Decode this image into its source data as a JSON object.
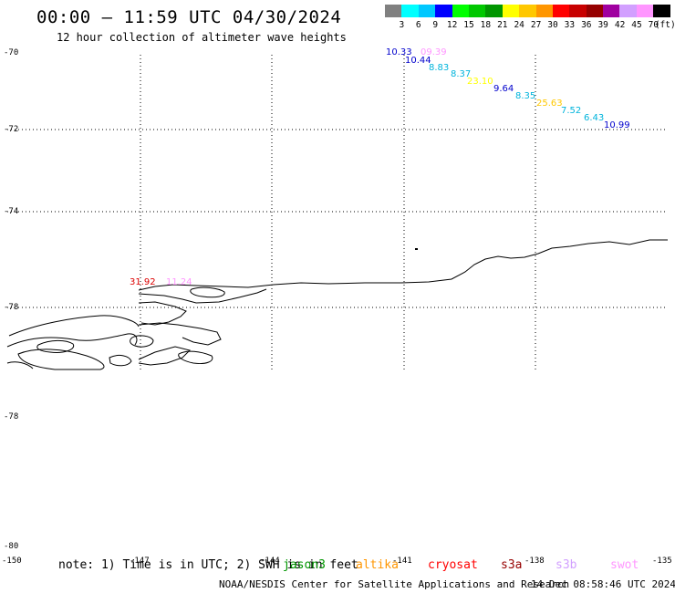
{
  "header": {
    "title": "00:00 – 11:59 UTC 04/30/2024",
    "subtitle": "12 hour collection of altimeter wave heights"
  },
  "colorbar": {
    "colors": [
      "#808080",
      "#00ffff",
      "#00c8ff",
      "#0000ff",
      "#00ff00",
      "#00c800",
      "#009600",
      "#ffff00",
      "#ffc800",
      "#ff9600",
      "#ff0000",
      "#c80000",
      "#960000",
      "#a000a0",
      "#d2a0ff",
      "#ff96ff",
      "#000000"
    ],
    "labels": [
      "3",
      "6",
      "9",
      "12",
      "15",
      "18",
      "21",
      "24",
      "27",
      "30",
      "33",
      "36",
      "39",
      "42",
      "45",
      "70"
    ],
    "unit": "(ft)"
  },
  "axes": {
    "y_labels": [
      "-70",
      "-72",
      "-74",
      "-76",
      "-78",
      "-80"
    ],
    "x_labels": [
      "-150",
      "-147",
      "-144",
      "-141",
      "-138",
      "-135"
    ]
  },
  "wave_heights": [
    {
      "text": "10.33",
      "color": "#0000cc"
    },
    {
      "text": "09.39",
      "color": "#ff96ff"
    },
    {
      "text": "10.44",
      "color": "#0000cc"
    },
    {
      "text": "8.83",
      "color": "#00b4dc"
    },
    {
      "text": "8.37",
      "color": "#00b4dc"
    },
    {
      "text": "23.10",
      "color": "#ffff00"
    },
    {
      "text": "9.64",
      "color": "#0000cc"
    },
    {
      "text": "8.35",
      "color": "#00b4dc"
    },
    {
      "text": "25.63",
      "color": "#ffc800"
    },
    {
      "text": "7.52",
      "color": "#00b4dc"
    },
    {
      "text": "6.43",
      "color": "#00b4dc"
    },
    {
      "text": "10.99",
      "color": "#0000cc"
    },
    {
      "text": "31.92",
      "color": "#dc0000"
    },
    {
      "text": "11.24",
      "color": "#ff96ff"
    }
  ],
  "footer": {
    "note": "note: 1) Time is in UTC; 2) SWH is in feet",
    "legend": [
      {
        "name": "jason3",
        "color": "#009600"
      },
      {
        "name": "altika",
        "color": "#ff9600"
      },
      {
        "name": "cryosat",
        "color": "#ff0000"
      },
      {
        "name": "s3a",
        "color": "#960000"
      },
      {
        "name": "s3b",
        "color": "#d2a0ff"
      },
      {
        "name": "swot",
        "color": "#ff96ff"
      }
    ],
    "credit": "NOAA/NESDIS Center for Satellite Applications and Research",
    "timestamp": "14 Dec 08:58:46 UTC 2024"
  }
}
